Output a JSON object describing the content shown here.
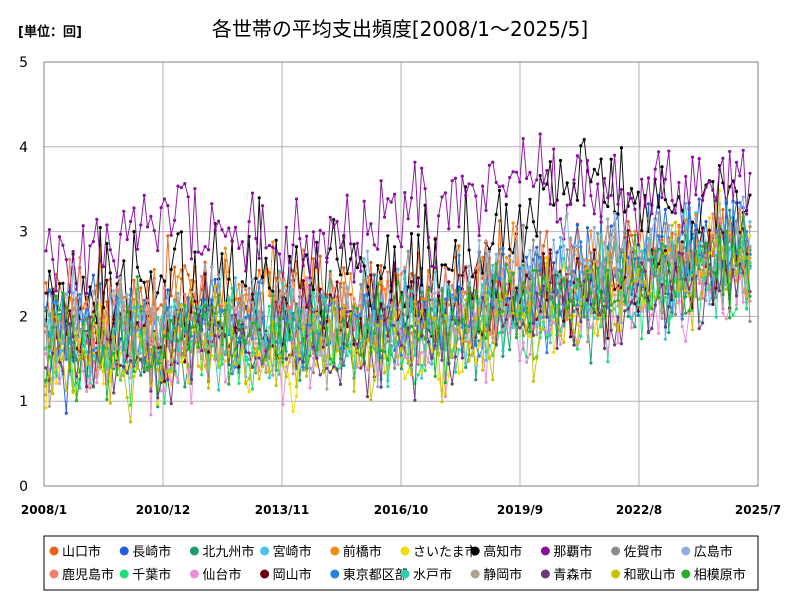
{
  "chart_data": {
    "type": "line",
    "title": "各世帯の平均支出頻度[2008/1～2025/5]",
    "unit_label": "[単位：回]",
    "xlabel": "",
    "ylabel": "",
    "ylim": [
      0,
      5
    ],
    "yticks": [
      "0",
      "1",
      "2",
      "3",
      "4",
      "5"
    ],
    "xticks": [
      "2008/1",
      "2010/12",
      "2013/11",
      "2016/10",
      "2019/9",
      "2022/8",
      "2025/7"
    ],
    "x_start": "2008/1",
    "x_end": "2025/7",
    "grid": true,
    "legend_position": "bottom",
    "series": [
      {
        "name": "山口市",
        "color": "#e8631a",
        "trend": [
          2.1,
          2.2,
          2.3,
          2.3,
          2.2,
          2.3,
          2.4,
          2.6,
          2.8,
          2.9
        ],
        "jitter": 0.45
      },
      {
        "name": "長崎市",
        "color": "#1f5fe0",
        "trend": [
          1.8,
          1.9,
          2.0,
          2.0,
          2.0,
          2.0,
          2.3,
          2.5,
          2.8,
          3.0
        ],
        "jitter": 0.5
      },
      {
        "name": "北九州市",
        "color": "#1a9e6a",
        "trend": [
          1.6,
          1.6,
          1.7,
          1.8,
          1.8,
          1.8,
          2.1,
          2.2,
          2.5,
          2.6
        ],
        "jitter": 0.45
      },
      {
        "name": "宮崎市",
        "color": "#4fc0e8",
        "trend": [
          1.8,
          1.8,
          1.9,
          1.9,
          1.9,
          1.9,
          2.3,
          2.4,
          2.6,
          2.8
        ],
        "jitter": 0.5
      },
      {
        "name": "前橋市",
        "color": "#f08c14",
        "trend": [
          1.9,
          2.0,
          2.1,
          2.2,
          2.1,
          2.1,
          2.4,
          2.5,
          2.7,
          2.9
        ],
        "jitter": 0.5
      },
      {
        "name": "さいたま市",
        "color": "#f5dc00",
        "trend": [
          1.4,
          1.5,
          1.5,
          1.6,
          1.6,
          1.6,
          2.0,
          2.2,
          2.6,
          2.8
        ],
        "jitter": 0.45
      },
      {
        "name": "高知市",
        "color": "#000000",
        "trend": [
          2.0,
          2.5,
          2.4,
          2.5,
          2.5,
          2.5,
          3.1,
          3.7,
          3.3,
          3.1
        ],
        "jitter": 0.55
      },
      {
        "name": "那覇市",
        "color": "#8a0f9e",
        "trend": [
          2.4,
          3.0,
          3.1,
          2.8,
          2.9,
          3.2,
          3.7,
          3.3,
          3.6,
          3.3
        ],
        "jitter": 0.55
      },
      {
        "name": "佐賀市",
        "color": "#8c8c8c",
        "trend": [
          1.7,
          1.8,
          1.9,
          1.9,
          2.0,
          2.0,
          2.4,
          2.5,
          2.6,
          2.7
        ],
        "jitter": 0.45
      },
      {
        "name": "広島市",
        "color": "#8fb0d8",
        "trend": [
          1.8,
          1.9,
          1.9,
          2.0,
          2.0,
          2.0,
          2.4,
          2.6,
          2.7,
          2.8
        ],
        "jitter": 0.45
      },
      {
        "name": "鹿児島市",
        "color": "#f08070",
        "trend": [
          1.9,
          2.0,
          2.0,
          2.1,
          2.1,
          2.1,
          2.3,
          2.5,
          2.6,
          2.7
        ],
        "jitter": 0.45
      },
      {
        "name": "千葉市",
        "color": "#1ee07a",
        "trend": [
          1.5,
          1.5,
          1.6,
          1.7,
          1.7,
          1.7,
          1.9,
          2.0,
          2.2,
          2.4
        ],
        "jitter": 0.4
      },
      {
        "name": "仙台市",
        "color": "#e890d8",
        "trend": [
          1.5,
          1.5,
          1.6,
          1.7,
          1.7,
          1.7,
          1.9,
          2.0,
          2.2,
          2.4
        ],
        "jitter": 0.45
      },
      {
        "name": "岡山市",
        "color": "#6a0010",
        "trend": [
          1.8,
          1.9,
          1.9,
          2.0,
          2.0,
          2.0,
          2.3,
          2.4,
          2.6,
          2.8
        ],
        "jitter": 0.45
      },
      {
        "name": "東京都区部",
        "color": "#2a82e0",
        "trend": [
          1.8,
          1.8,
          1.9,
          1.9,
          1.9,
          2.0,
          2.3,
          2.4,
          2.6,
          2.8
        ],
        "jitter": 0.45
      },
      {
        "name": "水戸市",
        "color": "#2ed0b0",
        "trend": [
          1.6,
          1.7,
          1.7,
          1.8,
          1.8,
          1.8,
          2.1,
          2.2,
          2.4,
          2.6
        ],
        "jitter": 0.45
      },
      {
        "name": "静岡市",
        "color": "#b0a090",
        "trend": [
          1.7,
          1.8,
          1.8,
          1.9,
          1.9,
          1.9,
          2.2,
          2.4,
          2.5,
          2.7
        ],
        "jitter": 0.45
      },
      {
        "name": "青森市",
        "color": "#6a3a7a",
        "trend": [
          1.5,
          1.5,
          1.6,
          1.6,
          1.6,
          1.6,
          2.0,
          2.1,
          2.3,
          2.5
        ],
        "jitter": 0.45
      },
      {
        "name": "和歌山市",
        "color": "#c8c000",
        "trend": [
          1.5,
          1.5,
          1.6,
          1.6,
          1.7,
          1.7,
          2.0,
          2.2,
          2.5,
          2.7
        ],
        "jitter": 0.45
      },
      {
        "name": "相模原市",
        "color": "#22b02a",
        "trend": [
          1.7,
          1.7,
          1.8,
          1.8,
          1.8,
          1.9,
          2.2,
          2.3,
          2.5,
          2.7
        ],
        "jitter": 0.45
      }
    ]
  }
}
